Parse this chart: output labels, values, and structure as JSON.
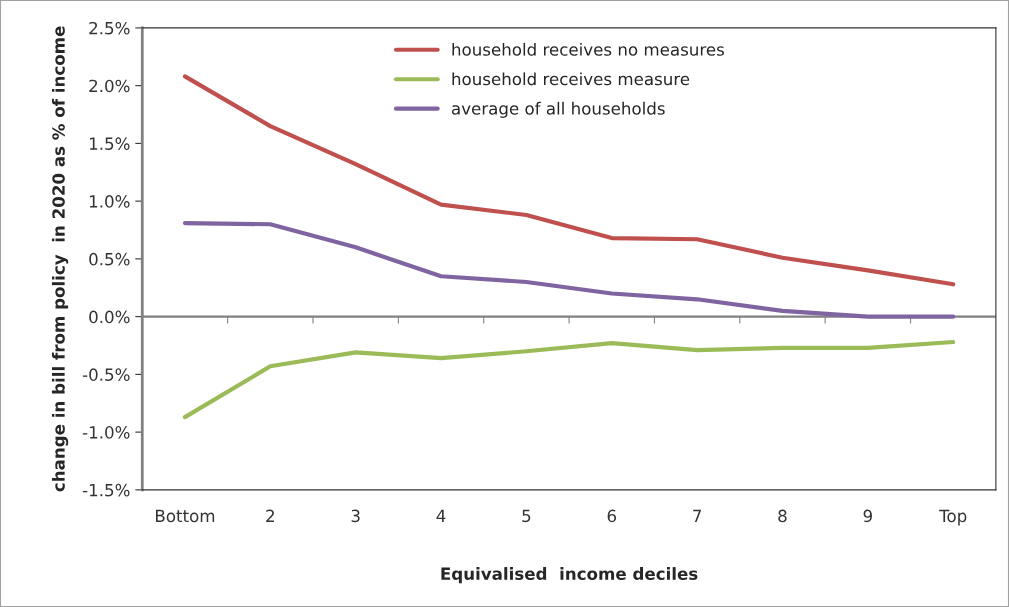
{
  "chart_data": {
    "type": "line",
    "categories": [
      "Bottom",
      "2",
      "3",
      "4",
      "5",
      "6",
      "7",
      "8",
      "9",
      "Top"
    ],
    "xlabel": "Equivalised  income deciles",
    "ylabel": "change in bill from policy  in 2020 as % of income",
    "series": [
      {
        "name": "household receives no measures",
        "color": "#c0504d",
        "values": [
          2.08,
          1.65,
          1.32,
          0.97,
          0.88,
          0.68,
          0.67,
          0.51,
          0.4,
          0.28
        ]
      },
      {
        "name": "household receives measure",
        "color": "#9bbb59",
        "values": [
          -0.87,
          -0.43,
          -0.31,
          -0.36,
          -0.3,
          -0.23,
          -0.29,
          -0.27,
          -0.27,
          -0.22
        ]
      },
      {
        "name": "average of all households",
        "color": "#8064a2",
        "values": [
          0.81,
          0.8,
          0.6,
          0.35,
          0.3,
          0.2,
          0.15,
          0.05,
          0.0,
          0.0
        ]
      }
    ],
    "ylim": [
      -1.5,
      2.5
    ],
    "yticks": [
      {
        "value": -1.5,
        "label": "-1.5%"
      },
      {
        "value": -1.0,
        "label": "-1.0%"
      },
      {
        "value": -0.5,
        "label": "-0.5%"
      },
      {
        "value": 0.0,
        "label": "0.0%"
      },
      {
        "value": 0.5,
        "label": "0.5%"
      },
      {
        "value": 1.0,
        "label": "1.0%"
      },
      {
        "value": 1.5,
        "label": "1.5%"
      },
      {
        "value": 2.0,
        "label": "2.0%"
      },
      {
        "value": 2.5,
        "label": "2.5%"
      }
    ],
    "ref_lines": [
      {
        "axis": "y",
        "value": 0,
        "color": "#808080"
      }
    ],
    "grid": false,
    "legend": "top right",
    "marker": "none",
    "line_style": "solid"
  }
}
